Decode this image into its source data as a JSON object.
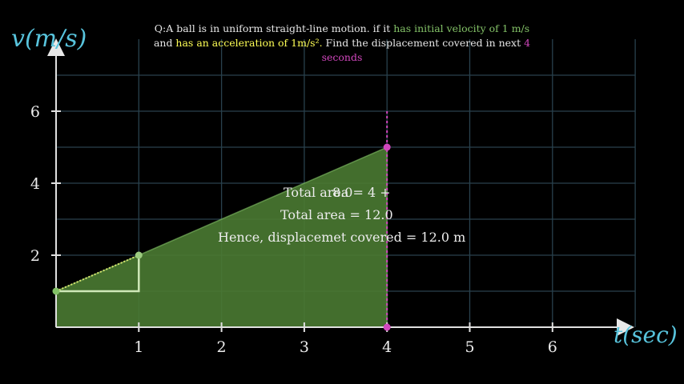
{
  "question": {
    "prefix": "Q:A ball is in uniform straight-line motion. if it ",
    "initial_velocity": "has initial velocity of 1 m/s",
    "and": "and ",
    "acceleration": "has an acceleration of 1m/s².",
    "find": " Find the displacement covered in next ",
    "seconds_num": "4",
    "seconds_word": "seconds"
  },
  "chart_data": {
    "type": "area",
    "xlabel": "t(sec)",
    "ylabel": "v(m/s)",
    "xlim": [
      0,
      7
    ],
    "ylim": [
      0,
      7
    ],
    "x_ticks": [
      1,
      2,
      3,
      4,
      5,
      6
    ],
    "y_ticks": [
      2,
      4,
      6
    ],
    "grid": true,
    "series": [
      {
        "x": [
          0,
          1,
          2,
          3,
          4
        ],
        "values": [
          1,
          2,
          3,
          4,
          5
        ]
      }
    ],
    "points": [
      {
        "x": 0,
        "y": 1
      },
      {
        "x": 1,
        "y": 2
      },
      {
        "x": 4,
        "y": 5
      },
      {
        "x": 4,
        "y": 0
      }
    ],
    "vertical_marker_x": 4,
    "slope_step": {
      "x": [
        0,
        1
      ],
      "y": [
        1,
        2
      ]
    },
    "annotations": {
      "overlap_a": "Total area = 4 +",
      "overlap_b": "8.0",
      "total": "Total area = 12.0",
      "conclusion": "Hence, displacemet covered = 12.0 m"
    },
    "colors": {
      "axis": "#e0e0e0",
      "axis_label": "#58c4dd",
      "area_fill": "#4a7a32",
      "area_edge": "#83c167",
      "grid": "#29414d",
      "marker": "#d147bd",
      "text": "#ececec"
    }
  }
}
